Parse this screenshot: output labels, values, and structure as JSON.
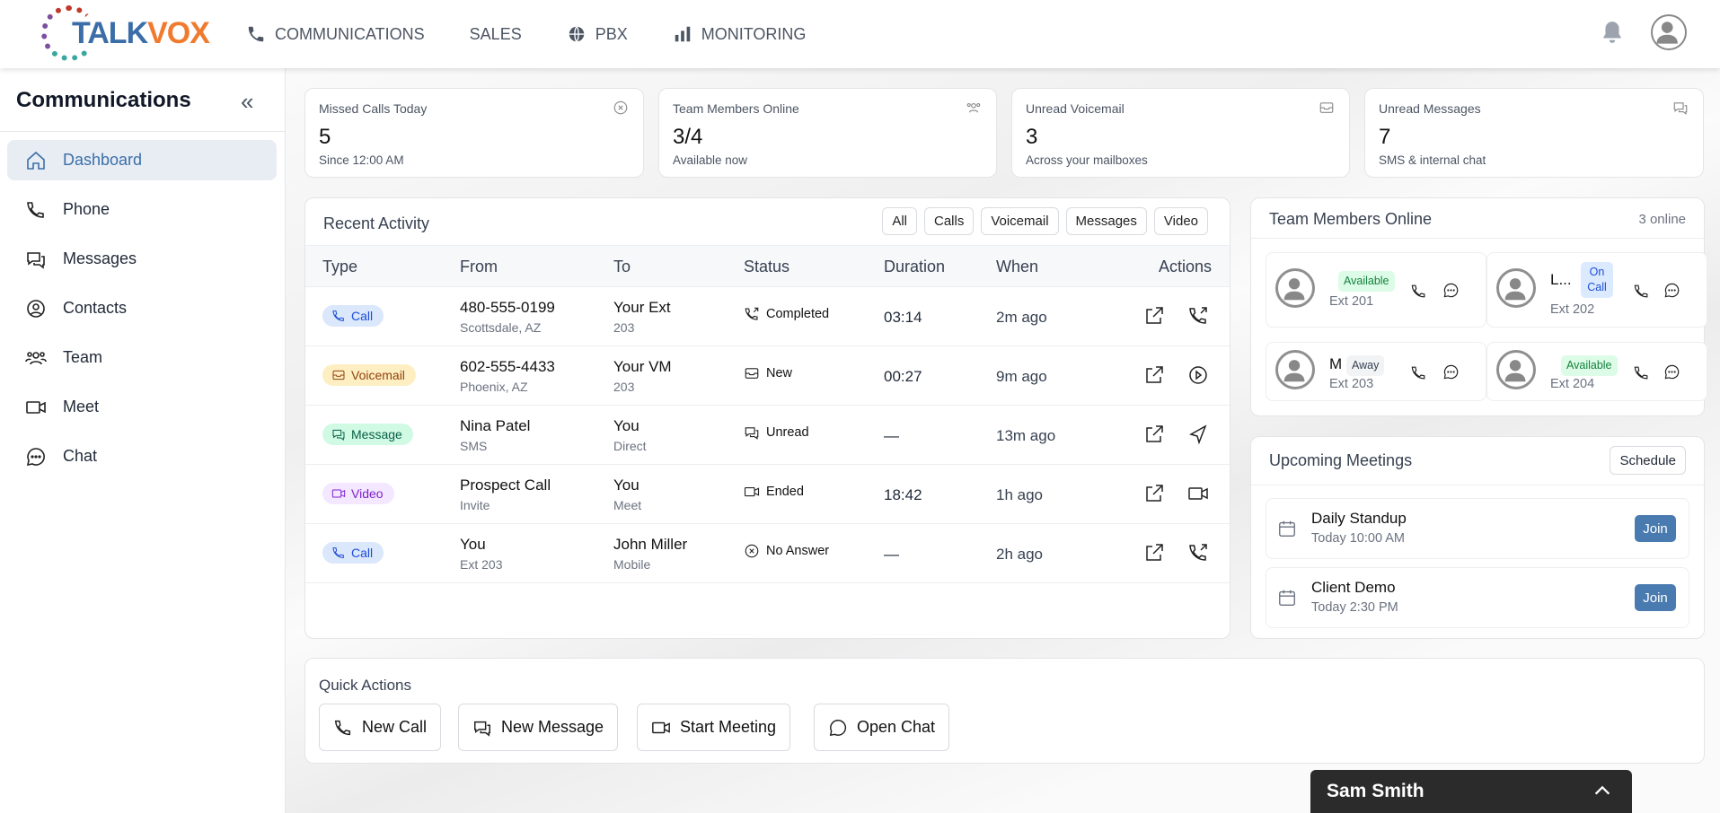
{
  "header": {
    "logo_text_1": "TALK",
    "logo_text_2": "VOX",
    "nav": [
      {
        "label": "COMMUNICATIONS",
        "icon": "phone-icon"
      },
      {
        "label": "SALES",
        "icon": ""
      },
      {
        "label": "PBX",
        "icon": "globe-icon"
      },
      {
        "label": "MONITORING",
        "icon": "bar-chart-icon"
      }
    ]
  },
  "sidebar": {
    "title": "Communications",
    "collapse_icon": "«",
    "items": [
      {
        "label": "Dashboard",
        "icon": "home-icon",
        "active": true
      },
      {
        "label": "Phone",
        "icon": "phone-icon"
      },
      {
        "label": "Messages",
        "icon": "messages-icon"
      },
      {
        "label": "Contacts",
        "icon": "contact-icon"
      },
      {
        "label": "Team",
        "icon": "team-icon"
      },
      {
        "label": "Meet",
        "icon": "video-icon"
      },
      {
        "label": "Chat",
        "icon": "chat-icon"
      }
    ]
  },
  "stats": [
    {
      "label": "Missed Calls Today",
      "value": "5",
      "sub": "Since 12:00 AM",
      "icon": "x-circle-icon"
    },
    {
      "label": "Team Members Online",
      "value": "3/4",
      "sub": "Available now",
      "icon": "team-icon"
    },
    {
      "label": "Unread Voicemail",
      "value": "3",
      "sub": "Across your mailboxes",
      "icon": "inbox-icon"
    },
    {
      "label": "Unread Messages",
      "value": "7",
      "sub": "SMS & internal chat",
      "icon": "messages-icon"
    }
  ],
  "activity": {
    "title": "Recent Activity",
    "filters": [
      "All",
      "Calls",
      "Voicemail",
      "Messages",
      "Video"
    ],
    "columns": [
      "Type",
      "From",
      "To",
      "Status",
      "Duration",
      "When",
      "Actions"
    ],
    "rows": [
      {
        "type": "Call",
        "from": "480-555-0199",
        "from_sub": "Scottsdale, AZ",
        "to": "Your Ext",
        "to_sub": "203",
        "status": "Completed",
        "duration": "03:14",
        "when": "2m ago",
        "action": "call-back-icon"
      },
      {
        "type": "Voicemail",
        "from": "602-555-4433",
        "from_sub": "Phoenix, AZ",
        "to": "Your VM",
        "to_sub": "203",
        "status": "New",
        "duration": "00:27",
        "when": "9m ago",
        "action": "play-icon"
      },
      {
        "type": "Message",
        "from": "Nina Patel",
        "from_sub": "SMS",
        "to": "You",
        "to_sub": "Direct",
        "status": "Unread",
        "duration": "—",
        "when": "13m ago",
        "action": "send-icon"
      },
      {
        "type": "Video",
        "from": "Prospect Call",
        "from_sub": "Invite",
        "to": "You",
        "to_sub": "Meet",
        "status": "Ended",
        "duration": "18:42",
        "when": "1h ago",
        "action": "video-icon"
      },
      {
        "type": "Call",
        "from": "You",
        "from_sub": "Ext 203",
        "to": "John Miller",
        "to_sub": "Mobile",
        "status": "No Answer",
        "duration": "—",
        "when": "2h ago",
        "action": "call-back-icon"
      }
    ]
  },
  "team": {
    "title": "Team Members Online",
    "count": "3 online",
    "members": [
      {
        "name": "",
        "ext": "Ext 201",
        "status": "Available"
      },
      {
        "name": "L...",
        "ext": "Ext 202",
        "status": "On Call"
      },
      {
        "name": "M",
        "ext": "Ext 203",
        "status": "Away"
      },
      {
        "name": "",
        "ext": "Ext 204",
        "status": "Available"
      }
    ]
  },
  "meetings": {
    "title": "Upcoming Meetings",
    "schedule_label": "Schedule",
    "items": [
      {
        "title": "Daily Standup",
        "time": "Today 10:00 AM",
        "join": "Join"
      },
      {
        "title": "Client Demo",
        "time": "Today 2:30 PM",
        "join": "Join"
      }
    ]
  },
  "quick_actions": {
    "title": "Quick Actions",
    "items": [
      "New Call",
      "New Message",
      "Start Meeting",
      "Open Chat"
    ]
  },
  "chat_bar": {
    "name": "Sam Smith"
  },
  "colors": {
    "accent": "#4a7bb0",
    "brand_blue": "#3b6ea8",
    "brand_orange": "#f07b2f"
  }
}
